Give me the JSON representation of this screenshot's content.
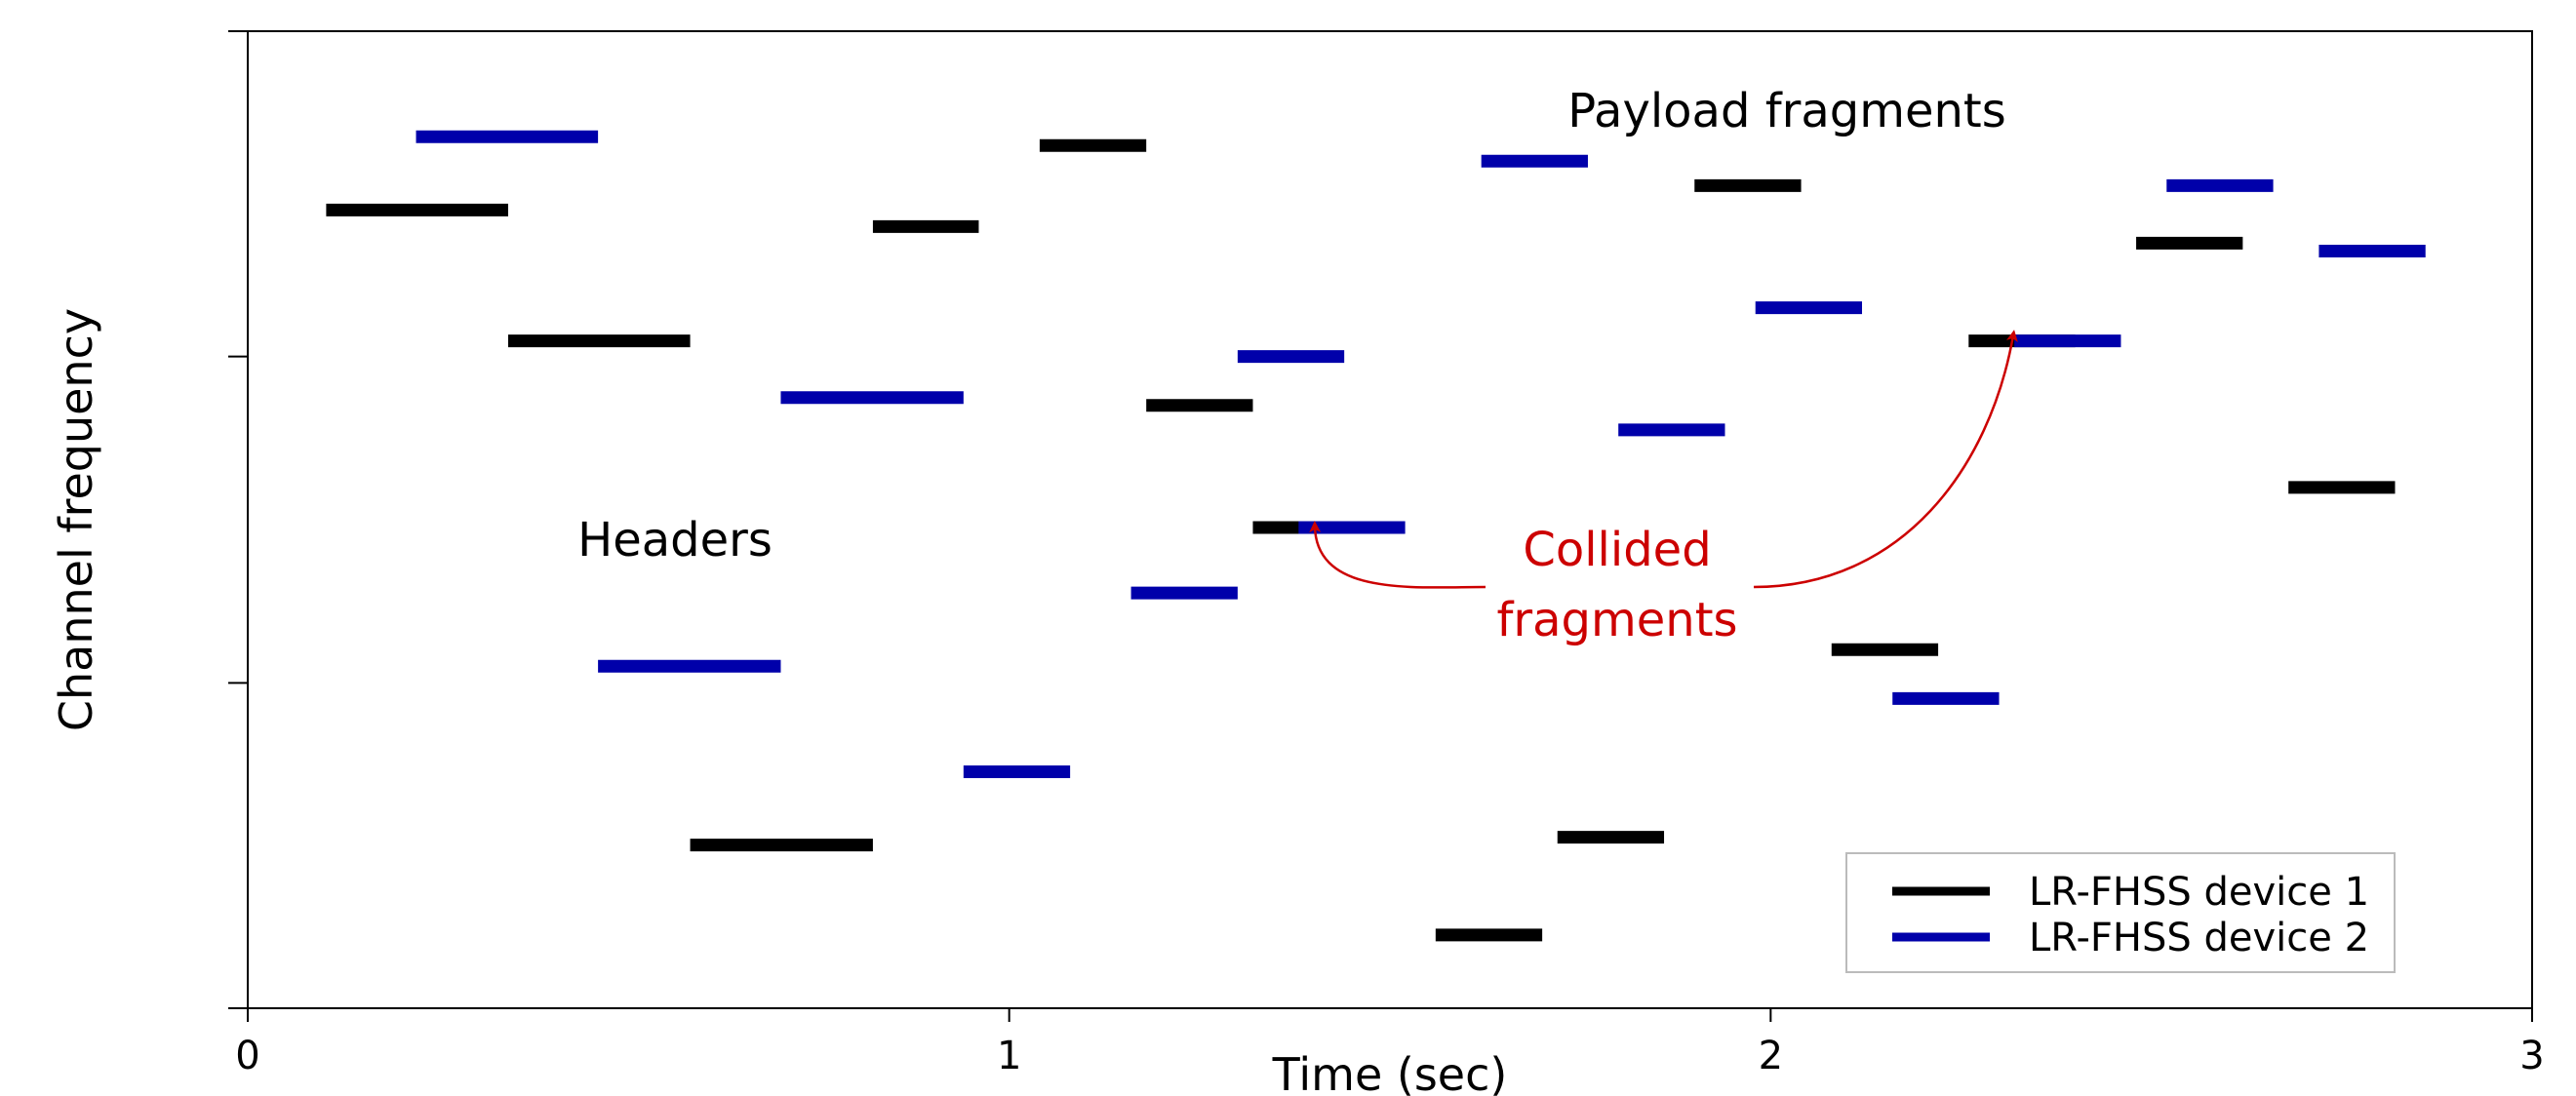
{
  "chart_data": {
    "type": "timeline",
    "xlabel": "Time (sec)",
    "ylabel": "Channel frequency",
    "xlim": [
      0,
      3
    ],
    "ylim": [
      0,
      1
    ],
    "x_ticks": [
      "0",
      "1",
      "2",
      "3"
    ],
    "y_ticks": [
      0,
      0.333,
      0.667,
      1
    ],
    "grid": false,
    "legend_position": "bottom-right",
    "series": [
      {
        "name": "LR-FHSS device 1",
        "color": "#000000",
        "segments": [
          {
            "x0": 0.103,
            "x1": 0.342,
            "y": 0.817,
            "kind": "header"
          },
          {
            "x0": 0.342,
            "x1": 0.581,
            "y": 0.683,
            "kind": "header"
          },
          {
            "x0": 0.581,
            "x1": 0.821,
            "y": 0.167,
            "kind": "header"
          },
          {
            "x0": 0.821,
            "x1": 0.96,
            "y": 0.8,
            "kind": "payload"
          },
          {
            "x0": 1.04,
            "x1": 1.18,
            "y": 0.883,
            "kind": "payload"
          },
          {
            "x0": 1.18,
            "x1": 1.32,
            "y": 0.617,
            "kind": "payload"
          },
          {
            "x0": 1.32,
            "x1": 1.46,
            "y": 0.492,
            "kind": "payload"
          },
          {
            "x0": 1.56,
            "x1": 1.7,
            "y": 0.075,
            "kind": "payload"
          },
          {
            "x0": 1.72,
            "x1": 1.86,
            "y": 0.175,
            "kind": "payload"
          },
          {
            "x0": 1.9,
            "x1": 2.04,
            "y": 0.842,
            "kind": "payload"
          },
          {
            "x0": 2.08,
            "x1": 2.22,
            "y": 0.367,
            "kind": "payload"
          },
          {
            "x0": 2.26,
            "x1": 2.4,
            "y": 0.683,
            "kind": "payload"
          },
          {
            "x0": 2.48,
            "x1": 2.62,
            "y": 0.783,
            "kind": "payload"
          },
          {
            "x0": 2.68,
            "x1": 2.82,
            "y": 0.533,
            "kind": "payload"
          }
        ]
      },
      {
        "name": "LR-FHSS device 2",
        "color": "#0000aa",
        "segments": [
          {
            "x0": 0.221,
            "x1": 0.46,
            "y": 0.892,
            "kind": "header"
          },
          {
            "x0": 0.46,
            "x1": 0.7,
            "y": 0.35,
            "kind": "header"
          },
          {
            "x0": 0.7,
            "x1": 0.94,
            "y": 0.625,
            "kind": "header"
          },
          {
            "x0": 0.94,
            "x1": 1.08,
            "y": 0.242,
            "kind": "payload"
          },
          {
            "x0": 1.16,
            "x1": 1.3,
            "y": 0.425,
            "kind": "payload"
          },
          {
            "x0": 1.3,
            "x1": 1.44,
            "y": 0.667,
            "kind": "payload"
          },
          {
            "x0": 1.38,
            "x1": 1.52,
            "y": 0.492,
            "kind": "payload"
          },
          {
            "x0": 1.62,
            "x1": 1.76,
            "y": 0.867,
            "kind": "payload"
          },
          {
            "x0": 1.8,
            "x1": 1.94,
            "y": 0.592,
            "kind": "payload"
          },
          {
            "x0": 1.98,
            "x1": 2.12,
            "y": 0.717,
            "kind": "payload"
          },
          {
            "x0": 2.16,
            "x1": 2.3,
            "y": 0.317,
            "kind": "payload"
          },
          {
            "x0": 2.32,
            "x1": 2.46,
            "y": 0.683,
            "kind": "payload"
          },
          {
            "x0": 2.52,
            "x1": 2.66,
            "y": 0.842,
            "kind": "payload"
          },
          {
            "x0": 2.72,
            "x1": 2.86,
            "y": 0.775,
            "kind": "payload"
          }
        ]
      }
    ],
    "annotations": {
      "headers": "Headers",
      "payload": "Payload fragments",
      "collided_line1": "Collided",
      "collided_line2": "fragments"
    },
    "annotation_color": "#cc0000"
  }
}
